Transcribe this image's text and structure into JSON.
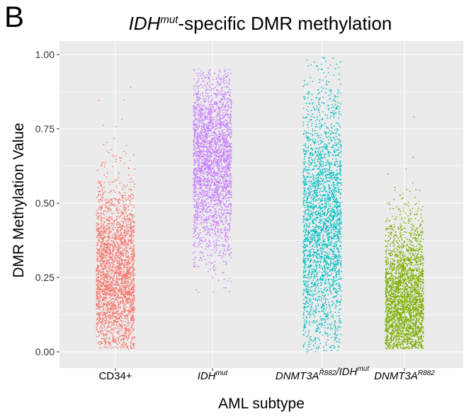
{
  "panel_letter": "B",
  "title": {
    "gene": "IDH",
    "sup": "mut",
    "rest": "-specific DMR methylation"
  },
  "chart_data": {
    "type": "scatter",
    "subtype": "jitter-strip",
    "title": "IDHmut-specific DMR methylation",
    "xlabel": "AML subtype",
    "ylabel": "DMR Methylation Value",
    "ylim": [
      0,
      1
    ],
    "yticks": [
      0.0,
      0.25,
      0.5,
      0.75,
      1.0
    ],
    "ytick_labels": [
      "0.00",
      "0.25",
      "0.50",
      "0.75",
      "1.00"
    ],
    "grid": true,
    "background": "#ebebeb",
    "gridline_color": "#ffffff",
    "categories": [
      {
        "label": "CD34+",
        "italic_main": "",
        "sup": ""
      },
      {
        "label": "",
        "italic_main": "IDH",
        "sup": "mut"
      },
      {
        "label": "",
        "italic_main": "DNMT3A",
        "sup": "R882",
        "suffix_main": "/IDH",
        "suffix_sup": "mut"
      },
      {
        "label": "",
        "italic_main": "DNMT3A",
        "sup": "R882"
      }
    ],
    "series": [
      {
        "color": "#f8766d",
        "min": 0.01,
        "max": 0.89,
        "q10": 0.06,
        "median": 0.25,
        "q90": 0.46
      },
      {
        "color": "#c77cff",
        "min": 0.2,
        "max": 0.95,
        "q10": 0.42,
        "median": 0.65,
        "q90": 0.83
      },
      {
        "color": "#00bfc4",
        "min": 0.0,
        "max": 0.99,
        "q10": 0.12,
        "median": 0.43,
        "q90": 0.7
      },
      {
        "color": "#7cae00",
        "min": 0.01,
        "max": 0.79,
        "q10": 0.04,
        "median": 0.15,
        "q90": 0.4
      }
    ]
  }
}
